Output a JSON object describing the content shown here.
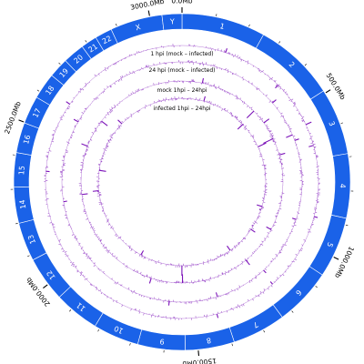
{
  "chart_data": {
    "type": "circos",
    "ideogram_color": "#1a62e8",
    "track_color": "#7b12b8",
    "chromosomes": [
      {
        "name": "1",
        "start_mb": 0,
        "end_mb": 249
      },
      {
        "name": "2",
        "start_mb": 249,
        "end_mb": 492
      },
      {
        "name": "3",
        "start_mb": 492,
        "end_mb": 690
      },
      {
        "name": "4",
        "start_mb": 690,
        "end_mb": 881
      },
      {
        "name": "5",
        "start_mb": 881,
        "end_mb": 1062
      },
      {
        "name": "6",
        "start_mb": 1062,
        "end_mb": 1233
      },
      {
        "name": "7",
        "start_mb": 1233,
        "end_mb": 1392
      },
      {
        "name": "8",
        "start_mb": 1392,
        "end_mb": 1538
      },
      {
        "name": "9",
        "start_mb": 1538,
        "end_mb": 1679
      },
      {
        "name": "10",
        "start_mb": 1679,
        "end_mb": 1815
      },
      {
        "name": "11",
        "start_mb": 1815,
        "end_mb": 1950
      },
      {
        "name": "12",
        "start_mb": 1950,
        "end_mb": 2084
      },
      {
        "name": "13",
        "start_mb": 2084,
        "end_mb": 2199
      },
      {
        "name": "14",
        "start_mb": 2199,
        "end_mb": 2306
      },
      {
        "name": "15",
        "start_mb": 2306,
        "end_mb": 2408
      },
      {
        "name": "16",
        "start_mb": 2408,
        "end_mb": 2498
      },
      {
        "name": "17",
        "start_mb": 2498,
        "end_mb": 2581
      },
      {
        "name": "18",
        "start_mb": 2581,
        "end_mb": 2659
      },
      {
        "name": "19",
        "start_mb": 2659,
        "end_mb": 2718
      },
      {
        "name": "20",
        "start_mb": 2718,
        "end_mb": 2782
      },
      {
        "name": "21",
        "start_mb": 2782,
        "end_mb": 2830
      },
      {
        "name": "22",
        "start_mb": 2830,
        "end_mb": 2881
      },
      {
        "name": "X",
        "start_mb": 2881,
        "end_mb": 3036
      },
      {
        "name": "Y",
        "start_mb": 3036,
        "end_mb": 3095
      }
    ],
    "scale_ticks": [
      {
        "value_mb": 0,
        "label": "0.0Mb"
      },
      {
        "value_mb": 500,
        "label": "500.0Mb"
      },
      {
        "value_mb": 1000,
        "label": "1000.0Mb"
      },
      {
        "value_mb": 1500,
        "label": "1500.0Mb"
      },
      {
        "value_mb": 2000,
        "label": "2000.0Mb"
      },
      {
        "value_mb": 2500,
        "label": "2500.0Mb"
      },
      {
        "value_mb": 3000,
        "label": "3000.0Mb"
      }
    ],
    "tracks": [
      {
        "name": "1 hpi (mock – infected)",
        "peaks": [
          {
            "pos_mb": 160,
            "height": 0.55
          },
          {
            "pos_mb": 385,
            "height": 0.5
          },
          {
            "pos_mb": 560,
            "height": 0.75
          },
          {
            "pos_mb": 640,
            "height": 0.6
          },
          {
            "pos_mb": 900,
            "height": 0.45
          },
          {
            "pos_mb": 1190,
            "height": 0.4
          },
          {
            "pos_mb": 1420,
            "height": 0.5
          },
          {
            "pos_mb": 2360,
            "height": 0.45
          },
          {
            "pos_mb": 2620,
            "height": 0.55
          }
        ]
      },
      {
        "name": "24 hpi (mock – infected)",
        "peaks": [
          {
            "pos_mb": 420,
            "height": 0.6
          },
          {
            "pos_mb": 575,
            "height": 0.85
          },
          {
            "pos_mb": 600,
            "height": 0.55
          },
          {
            "pos_mb": 930,
            "height": 0.5
          },
          {
            "pos_mb": 1180,
            "height": 0.45
          },
          {
            "pos_mb": 1400,
            "height": 0.55
          },
          {
            "pos_mb": 1600,
            "height": 0.5
          },
          {
            "pos_mb": 2240,
            "height": 0.45
          },
          {
            "pos_mb": 2580,
            "height": 0.6
          }
        ]
      },
      {
        "name": "mock 1hpi – 24hpi",
        "peaks": [
          {
            "pos_mb": 100,
            "height": 0.45
          },
          {
            "pos_mb": 390,
            "height": 0.9
          },
          {
            "pos_mb": 465,
            "height": 0.6
          },
          {
            "pos_mb": 555,
            "height": 1.0
          },
          {
            "pos_mb": 640,
            "height": 0.55
          },
          {
            "pos_mb": 1015,
            "height": 0.5
          },
          {
            "pos_mb": 1210,
            "height": 0.55
          },
          {
            "pos_mb": 1545,
            "height": 0.8
          },
          {
            "pos_mb": 1700,
            "height": 0.5
          },
          {
            "pos_mb": 2260,
            "height": 0.55
          },
          {
            "pos_mb": 2500,
            "height": 0.6
          },
          {
            "pos_mb": 2640,
            "height": 0.7
          }
        ]
      },
      {
        "name": "infected 1hpi – 24hpi",
        "peaks": [
          {
            "pos_mb": 130,
            "height": 0.5
          },
          {
            "pos_mb": 400,
            "height": 0.7
          },
          {
            "pos_mb": 560,
            "height": 0.9
          },
          {
            "pos_mb": 920,
            "height": 0.55
          },
          {
            "pos_mb": 1070,
            "height": 0.5
          },
          {
            "pos_mb": 1245,
            "height": 0.55
          },
          {
            "pos_mb": 1548,
            "height": 1.0
          },
          {
            "pos_mb": 1800,
            "height": 0.5
          },
          {
            "pos_mb": 2270,
            "height": 0.6
          },
          {
            "pos_mb": 2390,
            "height": 0.7
          },
          {
            "pos_mb": 2700,
            "height": 0.55
          }
        ]
      }
    ]
  }
}
